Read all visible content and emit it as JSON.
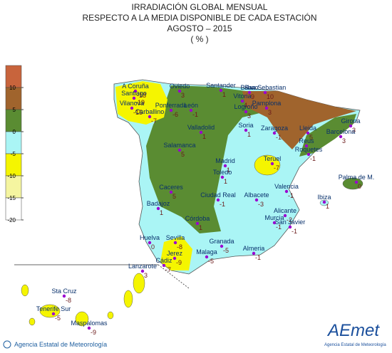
{
  "title": [
    "IRRADIACIÓN GLOBAL MENSUAL",
    "RESPECTO A LA MEDIA DISPONIBLE DE CADA ESTACIÓN",
    "AGOSTO – 2015",
    "( % )"
  ],
  "legend": {
    "ticks": [
      10,
      5,
      0,
      -5,
      -10,
      -15,
      -20
    ],
    "colors": [
      "#c8643c",
      "#a0642d",
      "#5a8c32",
      "#aaf5f5",
      "#f5f500",
      "#f5f5a0",
      "#ffffff"
    ]
  },
  "stations": [
    {
      "name": "A Coruña",
      "value": -18
    },
    {
      "name": "Santiago",
      "value": -19
    },
    {
      "name": "Vilanova",
      "value": -15
    },
    {
      "name": "Carballino",
      "value": -7
    },
    {
      "name": "Ponferrada",
      "value": -6
    },
    {
      "name": "Oviedo",
      "value": 3
    },
    {
      "name": "León",
      "value": -1
    },
    {
      "name": "Santander",
      "value": 1
    },
    {
      "name": "Bilbao",
      "value": 9
    },
    {
      "name": "San Sebastian",
      "value": 10
    },
    {
      "name": "Vitoria",
      "value": 4
    },
    {
      "name": "Pamplona",
      "value": 3
    },
    {
      "name": "Logroño",
      "value": 3
    },
    {
      "name": "Valladolid",
      "value": 1
    },
    {
      "name": "Soria",
      "value": 1
    },
    {
      "name": "Zaragoza",
      "value": -1
    },
    {
      "name": "Lleida",
      "value": 5
    },
    {
      "name": "Girona",
      "value": 3
    },
    {
      "name": "Barcelona",
      "value": 3
    },
    {
      "name": "Reus"
    },
    {
      "name": "Roquetes",
      "value": -1
    },
    {
      "name": "Salamanca",
      "value": 5
    },
    {
      "name": "Madrid",
      "value": 1
    },
    {
      "name": "Toledo",
      "value": 1
    },
    {
      "name": "Teruel",
      "value": -7
    },
    {
      "name": "Caceres",
      "value": 5
    },
    {
      "name": "Ciudad Real",
      "value": -1
    },
    {
      "name": "Albacete",
      "value": -3
    },
    {
      "name": "Valencia",
      "value": -1
    },
    {
      "name": "Palma de M.",
      "value": 0
    },
    {
      "name": "Ibiza",
      "value": 1
    },
    {
      "name": "Badajoz",
      "value": 1
    },
    {
      "name": "Alicante",
      "value": -2
    },
    {
      "name": "Murcia",
      "value": -1
    },
    {
      "name": "San Javier",
      "value": -1
    },
    {
      "name": "Córdoba",
      "value": 1
    },
    {
      "name": "Huelva",
      "value": 0
    },
    {
      "name": "Sevilla",
      "value": -8
    },
    {
      "name": "Granada",
      "value": -5
    },
    {
      "name": "Almeria",
      "value": -1
    },
    {
      "name": "Jerez",
      "value": -9
    },
    {
      "name": "Cádiz",
      "value": -7
    },
    {
      "name": "Malaga",
      "value": -5
    },
    {
      "name": "Lanzarote",
      "value": 3
    },
    {
      "name": "Sta Cruz",
      "value": -8
    },
    {
      "name": "Tenerife Sur",
      "value": -5
    },
    {
      "name": "Maspalomas",
      "value": -9
    }
  ],
  "footer": "Agencia Estatal de Meteorología",
  "logo": {
    "name": "AEmet",
    "subtitle": "Agencia Estatal de Meteorología"
  }
}
